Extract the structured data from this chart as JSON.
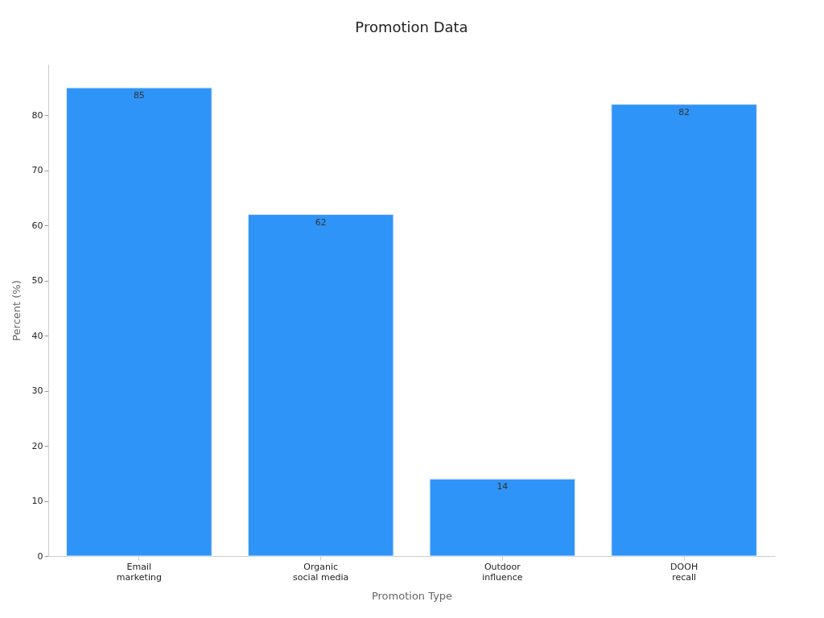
{
  "chart_data": {
    "type": "bar",
    "title": "Promotion Data",
    "xlabel": "Promotion Type",
    "ylabel": "Percent (%)",
    "categories": [
      "Email\nmarketing",
      "Organic\nsocial media",
      "Outdoor\ninfluence",
      "DOOH\nrecall"
    ],
    "values": [
      85,
      62,
      14,
      82
    ],
    "color": "#2f94f8",
    "data_labels": true,
    "ylim": [
      0,
      89.25
    ],
    "yticks": [
      0,
      10,
      20,
      30,
      40,
      50,
      60,
      70,
      80
    ],
    "grid": false
  }
}
